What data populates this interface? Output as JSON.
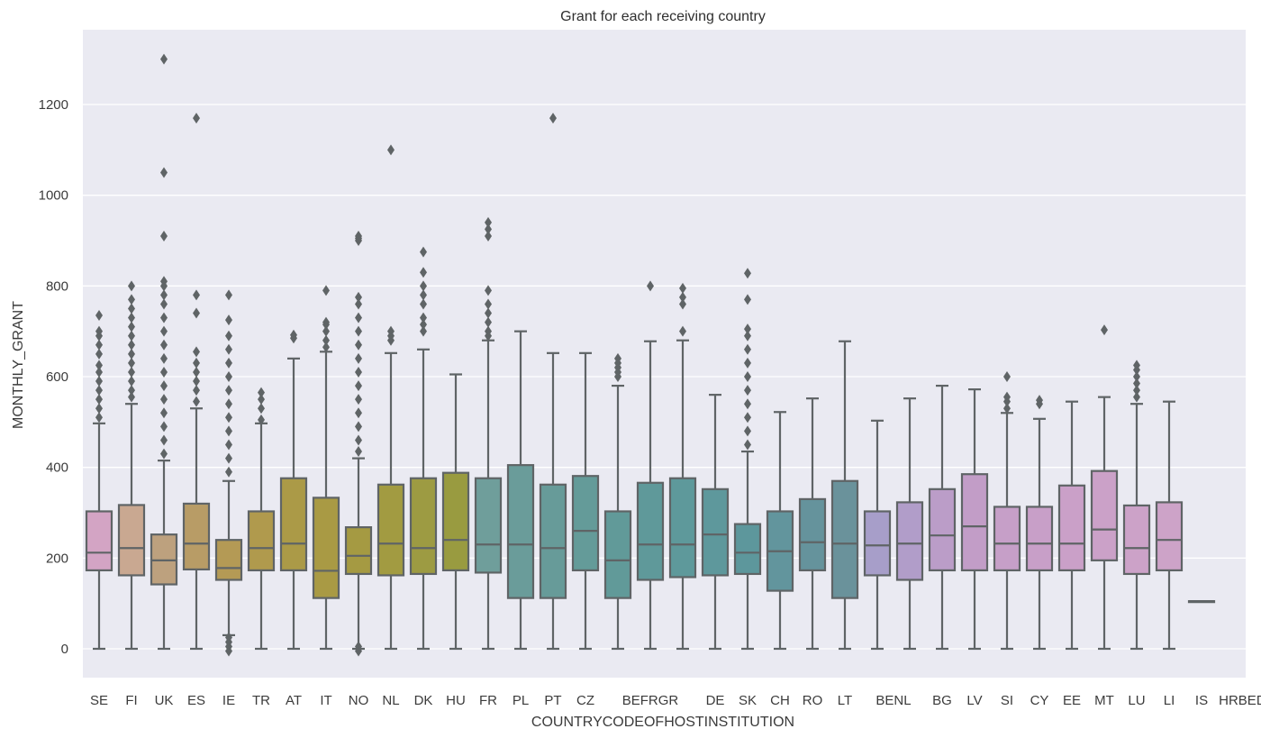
{
  "chart_data": {
    "type": "box",
    "title": "Grant for each receiving country",
    "xlabel": "COUNTRYCODEOFHOSTINSTITUTION",
    "ylabel": "MONTHLY_GRANT",
    "ylim": [
      -60,
      1370
    ],
    "yticks": [
      0,
      200,
      400,
      600,
      800,
      1000,
      1200
    ],
    "grid": true,
    "colors": {
      "background": "#eaeaf2",
      "grid": "#ffffff",
      "box_stroke": "#5f6466"
    },
    "categories": [
      "SE",
      "FI",
      "UK",
      "ES",
      "IE",
      "TR",
      "AT",
      "IT",
      "NO",
      "NL",
      "DK",
      "HU",
      "FR",
      "PL",
      "PT",
      "CZ",
      "BE",
      "FR",
      "GR",
      "DE",
      "SK",
      "CH",
      "RO",
      "LT",
      "BE",
      "NL",
      "BG",
      "LV",
      "SI",
      "CY",
      "EE",
      "MT",
      "LU",
      "LI",
      "IS",
      "HR",
      "BE",
      "DE"
    ],
    "boxes": [
      {
        "category": "SE",
        "q1": 173,
        "median": 212,
        "q3": 303,
        "whisker_low": 0,
        "whisker_high": 497,
        "color": "#d3a4c4",
        "outliers": [
          510,
          530,
          550,
          570,
          590,
          610,
          625,
          650,
          670,
          690,
          700,
          735
        ]
      },
      {
        "category": "FI",
        "q1": 162,
        "median": 222,
        "q3": 317,
        "whisker_low": 0,
        "whisker_high": 540,
        "color": "#c9a891",
        "outliers": [
          555,
          570,
          590,
          610,
          630,
          650,
          670,
          690,
          710,
          730,
          750,
          770,
          800
        ]
      },
      {
        "category": "UK",
        "q1": 142,
        "median": 195,
        "q3": 252,
        "whisker_low": 0,
        "whisker_high": 415,
        "color": "#bda17e",
        "outliers": [
          430,
          460,
          490,
          520,
          550,
          580,
          610,
          640,
          670,
          700,
          730,
          760,
          780,
          800,
          810,
          910,
          1050,
          1300
        ]
      },
      {
        "category": "ES",
        "q1": 175,
        "median": 232,
        "q3": 320,
        "whisker_low": 0,
        "whisker_high": 530,
        "color": "#b89c66",
        "outliers": [
          545,
          570,
          590,
          610,
          630,
          655,
          740,
          780,
          1170
        ]
      },
      {
        "category": "IE",
        "q1": 152,
        "median": 178,
        "q3": 240,
        "whisker_low": 30,
        "whisker_high": 370,
        "color": "#b49a55",
        "outliers": [
          -5,
          5,
          15,
          25,
          390,
          420,
          450,
          480,
          510,
          540,
          570,
          600,
          630,
          660,
          690,
          725,
          780
        ]
      },
      {
        "category": "TR",
        "q1": 173,
        "median": 222,
        "q3": 303,
        "whisker_low": 0,
        "whisker_high": 497,
        "color": "#b09a4d",
        "outliers": [
          505,
          530,
          550,
          565
        ]
      },
      {
        "category": "AT",
        "q1": 173,
        "median": 232,
        "q3": 376,
        "whisker_low": 0,
        "whisker_high": 640,
        "color": "#ab9a47",
        "outliers": [
          685,
          692
        ]
      },
      {
        "category": "IT",
        "q1": 112,
        "median": 172,
        "q3": 333,
        "whisker_low": 0,
        "whisker_high": 655,
        "color": "#a99a44",
        "outliers": [
          665,
          680,
          700,
          715,
          720,
          790
        ]
      },
      {
        "category": "NO",
        "q1": 165,
        "median": 205,
        "q3": 268,
        "whisker_low": 0,
        "whisker_high": 420,
        "color": "#a59a42",
        "outliers": [
          -5,
          5,
          435,
          460,
          490,
          520,
          550,
          580,
          610,
          640,
          670,
          700,
          730,
          760,
          775,
          900,
          905,
          910
        ]
      },
      {
        "category": "NL",
        "q1": 162,
        "median": 232,
        "q3": 362,
        "whisker_low": 0,
        "whisker_high": 652,
        "color": "#a29b41",
        "outliers": [
          680,
          690,
          700,
          1100
        ]
      },
      {
        "category": "DK",
        "q1": 165,
        "median": 222,
        "q3": 376,
        "whisker_low": 0,
        "whisker_high": 660,
        "color": "#9d9b42",
        "outliers": [
          700,
          715,
          730,
          760,
          780,
          800,
          830,
          875
        ]
      },
      {
        "category": "HU",
        "q1": 173,
        "median": 240,
        "q3": 388,
        "whisker_low": 0,
        "whisker_high": 605,
        "color": "#999b40",
        "outliers": []
      },
      {
        "category": "FR",
        "q1": 168,
        "median": 230,
        "q3": 376,
        "whisker_low": 0,
        "whisker_high": 680,
        "color": "#6f9e9b",
        "outliers": [
          690,
          700,
          720,
          740,
          760,
          790,
          910,
          925,
          940
        ]
      },
      {
        "category": "PL",
        "q1": 112,
        "median": 230,
        "q3": 405,
        "whisker_low": 0,
        "whisker_high": 700,
        "color": "#6a9c9a",
        "outliers": []
      },
      {
        "category": "PT",
        "q1": 112,
        "median": 222,
        "q3": 362,
        "whisker_low": 0,
        "whisker_high": 652,
        "color": "#679b99",
        "outliers": [
          1170
        ]
      },
      {
        "category": "CZ",
        "q1": 173,
        "median": 260,
        "q3": 381,
        "whisker_low": 0,
        "whisker_high": 652,
        "color": "#649b99",
        "outliers": []
      },
      {
        "category": "BE",
        "q1": 112,
        "median": 195,
        "q3": 303,
        "whisker_low": 0,
        "whisker_high": 580,
        "color": "#619a99",
        "outliers": [
          600,
          610,
          620,
          630,
          640
        ]
      },
      {
        "category": "FR",
        "q1": 152,
        "median": 230,
        "q3": 366,
        "whisker_low": 0,
        "whisker_high": 678,
        "color": "#5f999a",
        "outliers": [
          800
        ]
      },
      {
        "category": "GR",
        "q1": 158,
        "median": 230,
        "q3": 376,
        "whisker_low": 0,
        "whisker_high": 680,
        "color": "#5e999b",
        "outliers": [
          700,
          760,
          775,
          795
        ]
      },
      {
        "category": "DE",
        "q1": 162,
        "median": 252,
        "q3": 352,
        "whisker_low": 0,
        "whisker_high": 560,
        "color": "#5e989c",
        "outliers": []
      },
      {
        "category": "SK",
        "q1": 165,
        "median": 212,
        "q3": 275,
        "whisker_low": 0,
        "whisker_high": 435,
        "color": "#5d979c",
        "outliers": [
          450,
          480,
          510,
          540,
          570,
          600,
          630,
          660,
          690,
          705,
          770,
          828
        ]
      },
      {
        "category": "CH",
        "q1": 128,
        "median": 215,
        "q3": 303,
        "whisker_low": 0,
        "whisker_high": 522,
        "color": "#62959d",
        "outliers": []
      },
      {
        "category": "RO",
        "q1": 173,
        "median": 235,
        "q3": 330,
        "whisker_low": 0,
        "whisker_high": 552,
        "color": "#65939c",
        "outliers": []
      },
      {
        "category": "LT",
        "q1": 112,
        "median": 232,
        "q3": 370,
        "whisker_low": 0,
        "whisker_high": 678,
        "color": "#6a929b",
        "outliers": []
      },
      {
        "category": "BE",
        "q1": 162,
        "median": 228,
        "q3": 303,
        "whisker_low": 0,
        "whisker_high": 503,
        "color": "#a79ec9",
        "outliers": []
      },
      {
        "category": "NL",
        "q1": 152,
        "median": 232,
        "q3": 323,
        "whisker_low": 0,
        "whisker_high": 552,
        "color": "#b19dc9",
        "outliers": []
      },
      {
        "category": "BG",
        "q1": 173,
        "median": 250,
        "q3": 352,
        "whisker_low": 0,
        "whisker_high": 580,
        "color": "#bb9dc8",
        "outliers": []
      },
      {
        "category": "LV",
        "q1": 173,
        "median": 270,
        "q3": 385,
        "whisker_low": 0,
        "whisker_high": 572,
        "color": "#c29dc7",
        "outliers": []
      },
      {
        "category": "SI",
        "q1": 173,
        "median": 232,
        "q3": 313,
        "whisker_low": 0,
        "whisker_high": 520,
        "color": "#c69fc8",
        "outliers": [
          530,
          545,
          555,
          600
        ]
      },
      {
        "category": "CY",
        "q1": 173,
        "median": 232,
        "q3": 313,
        "whisker_low": 0,
        "whisker_high": 507,
        "color": "#c89fc8",
        "outliers": [
          540,
          548
        ]
      },
      {
        "category": "EE",
        "q1": 173,
        "median": 232,
        "q3": 360,
        "whisker_low": 0,
        "whisker_high": 545,
        "color": "#caa0c8",
        "outliers": []
      },
      {
        "category": "MT",
        "q1": 195,
        "median": 263,
        "q3": 392,
        "whisker_low": 0,
        "whisker_high": 555,
        "color": "#cba1c8",
        "outliers": [
          703
        ]
      },
      {
        "category": "LU",
        "q1": 165,
        "median": 222,
        "q3": 316,
        "whisker_low": 0,
        "whisker_high": 540,
        "color": "#cca2c8",
        "outliers": [
          555,
          570,
          585,
          600,
          615,
          625
        ]
      },
      {
        "category": "LI",
        "q1": 173,
        "median": 240,
        "q3": 323,
        "whisker_low": 0,
        "whisker_high": 545,
        "color": "#cda3c8",
        "outliers": []
      },
      {
        "category": "IS",
        "q1": 105,
        "median": 105,
        "q3": 105,
        "whisker_low": 105,
        "whisker_high": 105,
        "color": "#cfa4c8",
        "outliers": []
      }
    ],
    "xtick_labels": [
      {
        "label": "SE"
      },
      {
        "label": "FI"
      },
      {
        "label": "UK"
      },
      {
        "label": "ES"
      },
      {
        "label": "IE"
      },
      {
        "label": "TR"
      },
      {
        "label": "AT"
      },
      {
        "label": "IT"
      },
      {
        "label": "NO"
      },
      {
        "label": "NL"
      },
      {
        "label": "DK"
      },
      {
        "label": "HU"
      },
      {
        "label": "FR"
      },
      {
        "label": "PL"
      },
      {
        "label": "PT"
      },
      {
        "label": "CZ"
      },
      {
        "label": "BEFRGR"
      },
      {
        "label": "DE"
      },
      {
        "label": "SK"
      },
      {
        "label": "CH"
      },
      {
        "label": "RO"
      },
      {
        "label": "LT"
      },
      {
        "label": "BENL"
      },
      {
        "label": "BG"
      },
      {
        "label": "LV"
      },
      {
        "label": "SI"
      },
      {
        "label": "CY"
      },
      {
        "label": "EE"
      },
      {
        "label": "MT"
      },
      {
        "label": "LU"
      },
      {
        "label": "LI"
      },
      {
        "label": "IS"
      },
      {
        "label": "HRBEDE"
      }
    ]
  }
}
